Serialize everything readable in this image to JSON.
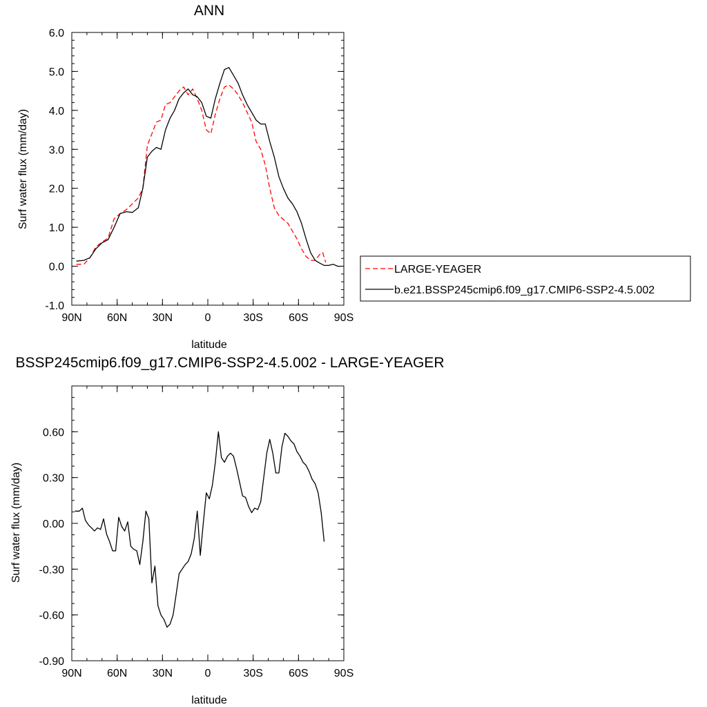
{
  "chart_data": [
    {
      "type": "line",
      "title": "ANN",
      "xlabel": "latitude",
      "ylabel": "Surf water flux (mm/day)",
      "xlim": [
        90,
        -90
      ],
      "ylim": [
        -1.0,
        6.0
      ],
      "xticks": [
        90,
        60,
        30,
        0,
        -30,
        -60,
        -90
      ],
      "xtick_labels": [
        "90N",
        "60N",
        "30N",
        "0",
        "30S",
        "60S",
        "90S"
      ],
      "yticks": [
        -1.0,
        0.0,
        1.0,
        2.0,
        3.0,
        4.0,
        5.0,
        6.0
      ],
      "ytick_labels": [
        "-1.0",
        "0.0",
        "1.0",
        "2.0",
        "3.0",
        "4.0",
        "5.0",
        "6.0"
      ],
      "legend_position": "right",
      "grid": false,
      "series": [
        {
          "name": "LARGE-YEAGER",
          "color": "#ff0000",
          "dash": "dashed",
          "x": [
            87,
            82,
            78,
            74,
            70,
            66,
            62,
            58,
            54,
            50,
            46,
            43,
            40,
            37,
            34,
            31,
            28,
            25,
            22,
            19,
            16,
            13,
            10,
            7,
            4,
            1,
            -2,
            -5,
            -8,
            -11,
            -14,
            -17,
            -20,
            -23,
            -26,
            -29,
            -32,
            -35,
            -38,
            -41,
            -44,
            -47,
            -50,
            -53,
            -56,
            -59,
            -62,
            -65,
            -68,
            -71,
            -74,
            -76,
            -78
          ],
          "y": [
            0.05,
            0.05,
            0.22,
            0.5,
            0.62,
            0.72,
            1.22,
            1.35,
            1.45,
            1.6,
            1.75,
            2.0,
            3.1,
            3.4,
            3.7,
            3.75,
            4.15,
            4.2,
            4.35,
            4.5,
            4.6,
            4.4,
            4.55,
            4.3,
            4.0,
            3.5,
            3.4,
            3.9,
            4.3,
            4.6,
            4.65,
            4.55,
            4.4,
            4.2,
            3.95,
            3.7,
            3.2,
            3.0,
            2.6,
            2.0,
            1.5,
            1.3,
            1.2,
            1.1,
            0.9,
            0.7,
            0.45,
            0.25,
            0.15,
            0.15,
            0.3,
            0.35,
            0.1
          ]
        },
        {
          "name": "b.e21.BSSP245cmip6.f09_g17.CMIP6-SSP2-4.5.002",
          "color": "#000000",
          "dash": "solid",
          "x": [
            87,
            82,
            78,
            74,
            70,
            66,
            62,
            58,
            54,
            50,
            46,
            43,
            40,
            37,
            34,
            31,
            28,
            25,
            22,
            19,
            16,
            13,
            10,
            7,
            4,
            1,
            -2,
            -5,
            -8,
            -11,
            -14,
            -17,
            -20,
            -23,
            -26,
            -29,
            -32,
            -35,
            -38,
            -41,
            -44,
            -47,
            -50,
            -53,
            -56,
            -59,
            -62,
            -65,
            -68,
            -71,
            -74,
            -77,
            -80,
            -83,
            -86,
            -88
          ],
          "y": [
            0.13,
            0.15,
            0.22,
            0.45,
            0.6,
            0.68,
            1.0,
            1.35,
            1.4,
            1.38,
            1.5,
            2.0,
            2.8,
            2.95,
            3.05,
            3.0,
            3.5,
            3.8,
            4.0,
            4.3,
            4.45,
            4.55,
            4.4,
            4.35,
            4.2,
            3.85,
            3.8,
            4.3,
            4.7,
            5.05,
            5.1,
            4.9,
            4.7,
            4.4,
            4.15,
            3.95,
            3.75,
            3.65,
            3.65,
            3.2,
            2.8,
            2.3,
            2.0,
            1.75,
            1.6,
            1.4,
            1.1,
            0.7,
            0.35,
            0.15,
            0.08,
            0.02,
            0.02,
            0.05,
            0.0,
            0.0
          ]
        }
      ]
    },
    {
      "type": "line",
      "title": "BSSP245cmip6.f09_g17.CMIP6-SSP2-4.5.002 - LARGE-YEAGER",
      "xlabel": "latitude",
      "ylabel": "Surf water flux (mm/day)",
      "xlim": [
        90,
        -90
      ],
      "ylim": [
        -0.9,
        0.9
      ],
      "xticks": [
        90,
        60,
        30,
        0,
        -30,
        -60,
        -90
      ],
      "xtick_labels": [
        "90N",
        "60N",
        "30N",
        "0",
        "30S",
        "60S",
        "90S"
      ],
      "yticks": [
        -0.9,
        -0.6,
        -0.3,
        0.0,
        0.3,
        0.6
      ],
      "ytick_labels": [
        "-0.90",
        "-0.60",
        "-0.30",
        "0.00",
        "0.30",
        "0.60"
      ],
      "grid": false,
      "series": [
        {
          "color": "#000000",
          "dash": "solid",
          "x": [
            88,
            85,
            83,
            81,
            79,
            77,
            75,
            73,
            71,
            69,
            67,
            65,
            63,
            61,
            59,
            57,
            55,
            53,
            51,
            49,
            47,
            45,
            43,
            41,
            39,
            37,
            35,
            33,
            31,
            29,
            27,
            25,
            23,
            21,
            19,
            17,
            15,
            13,
            11,
            9,
            7,
            5,
            3,
            1,
            -1,
            -3,
            -5,
            -7,
            -9,
            -11,
            -13,
            -15,
            -17,
            -19,
            -21,
            -23,
            -25,
            -27,
            -29,
            -31,
            -33,
            -35,
            -37,
            -39,
            -41,
            -43,
            -45,
            -47,
            -49,
            -51,
            -53,
            -55,
            -57,
            -59,
            -61,
            -63,
            -65,
            -67,
            -69,
            -71,
            -73,
            -75,
            -77
          ],
          "y": [
            0.08,
            0.08,
            0.1,
            0.02,
            -0.01,
            -0.03,
            -0.05,
            -0.03,
            -0.04,
            0.03,
            -0.07,
            -0.12,
            -0.18,
            -0.18,
            0.04,
            -0.02,
            -0.05,
            0.01,
            -0.15,
            -0.17,
            -0.18,
            -0.27,
            -0.12,
            0.08,
            0.03,
            -0.39,
            -0.28,
            -0.54,
            -0.6,
            -0.63,
            -0.68,
            -0.66,
            -0.6,
            -0.47,
            -0.33,
            -0.3,
            -0.27,
            -0.25,
            -0.2,
            -0.1,
            0.08,
            -0.21,
            0.0,
            0.2,
            0.16,
            0.25,
            0.4,
            0.6,
            0.43,
            0.4,
            0.44,
            0.46,
            0.44,
            0.36,
            0.27,
            0.18,
            0.17,
            0.11,
            0.07,
            0.1,
            0.09,
            0.14,
            0.3,
            0.46,
            0.55,
            0.46,
            0.33,
            0.33,
            0.5,
            0.59,
            0.57,
            0.54,
            0.52,
            0.47,
            0.44,
            0.4,
            0.38,
            0.34,
            0.29,
            0.26,
            0.2,
            0.07,
            -0.12
          ]
        }
      ]
    }
  ]
}
